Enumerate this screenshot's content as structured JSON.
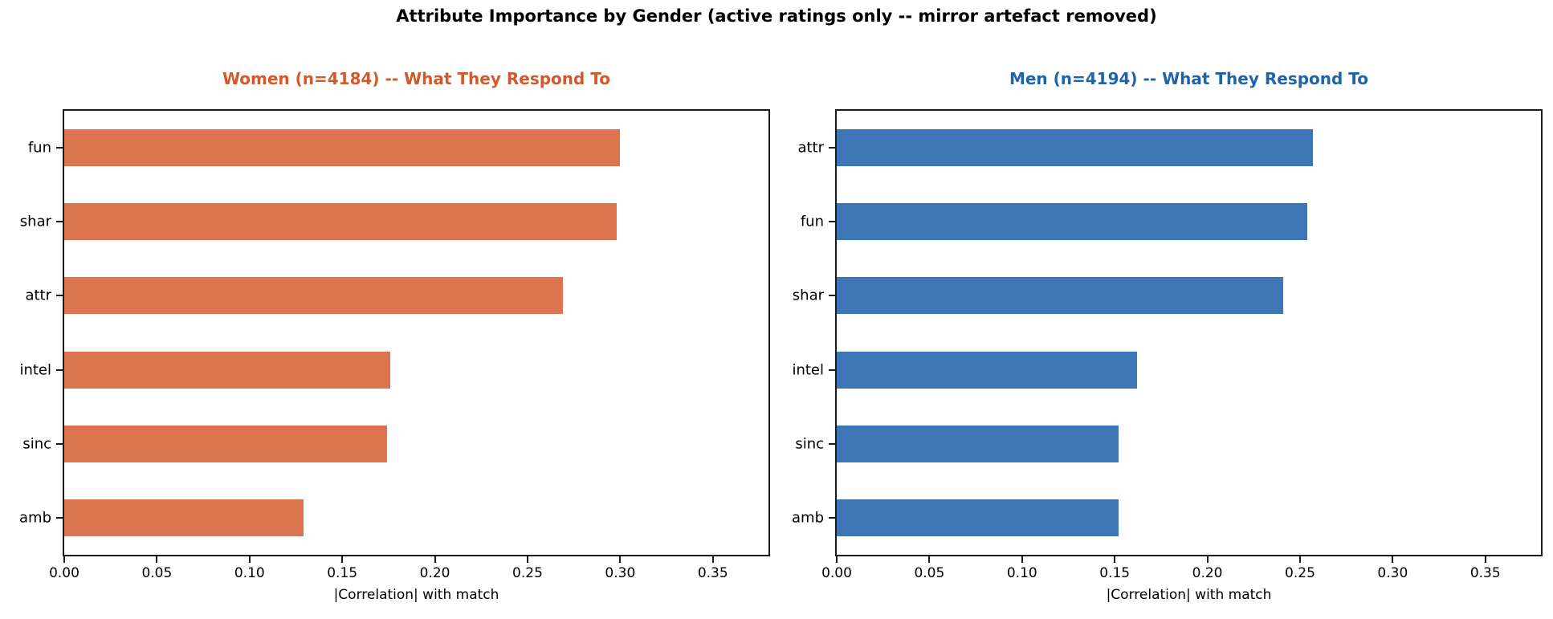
{
  "figure": {
    "title": "Attribute Importance by Gender (active ratings only -- mirror artefact removed)",
    "background": "#ffffff",
    "axis_color": "#1a1a1a",
    "text_color": "#000000"
  },
  "chart_data": [
    {
      "type": "bar",
      "orientation": "horizontal",
      "title": "Women (n=4184) -- What They Respond To",
      "title_color": "#d2592c",
      "bar_color": "#dc7450",
      "categories": [
        "fun",
        "shar",
        "attr",
        "intel",
        "sinc",
        "amb"
      ],
      "values": [
        0.3,
        0.298,
        0.269,
        0.176,
        0.174,
        0.129
      ],
      "xlabel": "|Correlation| with match",
      "xlim": [
        0,
        0.38
      ],
      "xticks": [
        0.0,
        0.05,
        0.1,
        0.15,
        0.2,
        0.25,
        0.3,
        0.35
      ],
      "xtick_labels": [
        "0.00",
        "0.05",
        "0.10",
        "0.15",
        "0.20",
        "0.25",
        "0.30",
        "0.35"
      ],
      "grid": false,
      "legend": null
    },
    {
      "type": "bar",
      "orientation": "horizontal",
      "title": "Men (n=4194) -- What They Respond To",
      "title_color": "#1f63a8",
      "bar_color": "#3c76b4",
      "categories": [
        "attr",
        "fun",
        "shar",
        "intel",
        "sinc",
        "amb"
      ],
      "values": [
        0.257,
        0.254,
        0.241,
        0.162,
        0.152,
        0.152
      ],
      "xlabel": "|Correlation| with match",
      "xlim": [
        0,
        0.38
      ],
      "xticks": [
        0.0,
        0.05,
        0.1,
        0.15,
        0.2,
        0.25,
        0.3,
        0.35
      ],
      "xtick_labels": [
        "0.00",
        "0.05",
        "0.10",
        "0.15",
        "0.20",
        "0.25",
        "0.30",
        "0.35"
      ],
      "grid": false,
      "legend": null
    }
  ]
}
